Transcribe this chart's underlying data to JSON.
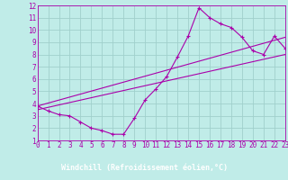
{
  "xlabel": "Windchill (Refroidissement éolien,°C)",
  "bg_color": "#c0ece8",
  "xlabel_bg": "#7070c0",
  "grid_color": "#a0d0cc",
  "line_color": "#aa00aa",
  "xlim": [
    0,
    23
  ],
  "ylim": [
    1,
    12
  ],
  "xticks": [
    0,
    1,
    2,
    3,
    4,
    5,
    6,
    7,
    8,
    9,
    10,
    11,
    12,
    13,
    14,
    15,
    16,
    17,
    18,
    19,
    20,
    21,
    22,
    23
  ],
  "yticks": [
    1,
    2,
    3,
    4,
    5,
    6,
    7,
    8,
    9,
    10,
    11,
    12
  ],
  "main_x": [
    0,
    1,
    2,
    3,
    4,
    5,
    6,
    7,
    8,
    9,
    10,
    11,
    12,
    13,
    14,
    15,
    16,
    17,
    18,
    19,
    20,
    21,
    22,
    23
  ],
  "main_y": [
    3.8,
    3.4,
    3.1,
    3.0,
    2.5,
    2.0,
    1.8,
    1.5,
    1.5,
    2.8,
    4.3,
    5.2,
    6.2,
    7.8,
    9.5,
    11.8,
    11.0,
    10.5,
    10.2,
    9.4,
    8.3,
    8.0,
    9.5,
    8.5
  ],
  "line1_x": [
    0,
    23
  ],
  "line1_y": [
    3.8,
    9.4
  ],
  "line2_x": [
    0,
    23
  ],
  "line2_y": [
    3.5,
    8.0
  ],
  "xlabel_color": "#ffffff",
  "tick_color": "#aa00aa",
  "tick_fontsize": 5.5,
  "xlabel_fontsize": 6.0
}
